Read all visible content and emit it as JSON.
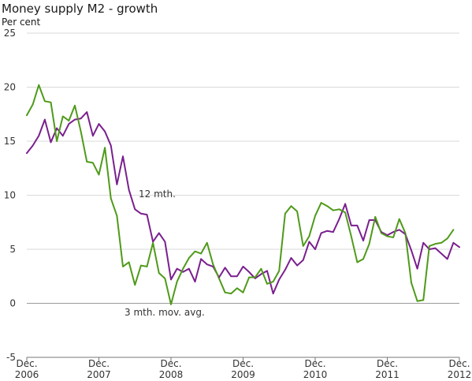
{
  "chart_data": {
    "type": "line",
    "title": "Money supply M2 - growth",
    "ylabel": "Per cent",
    "xlabel": "",
    "ylim": [
      -5,
      25
    ],
    "yticks": [
      "25",
      "20",
      "15",
      "10",
      "5",
      "0",
      "-5"
    ],
    "xticks": [
      {
        "label": "Dec.",
        "year": "2006",
        "x": 0
      },
      {
        "label": "Dec.",
        "year": "2007",
        "x": 12
      },
      {
        "label": "Dec.",
        "year": "2008",
        "x": 24
      },
      {
        "label": "Dec.",
        "year": "2009",
        "x": 36
      },
      {
        "label": "Dec.",
        "year": "2010",
        "x": 48
      },
      {
        "label": "Dec.",
        "year": "2011",
        "x": 60
      },
      {
        "label": "Dec.",
        "year": "2012",
        "x": 72
      }
    ],
    "x_unit": "months since Dec. 2006",
    "grid": "horizontal",
    "colors": {
      "twelve_month": "#7a1f8e",
      "three_month": "#4f9a1a",
      "grid": "#d9d9d9",
      "zero": "#9a9a9a"
    },
    "annotations": {
      "twelve_month": "12 mth.",
      "three_month": "3 mth. mov. avg."
    },
    "series": [
      {
        "key": "twelve_month",
        "x_start": 0,
        "values": [
          13.9,
          14.6,
          15.5,
          17.0,
          14.9,
          16.2,
          15.5,
          16.6,
          17.0,
          17.1,
          17.7,
          15.5,
          16.6,
          15.9,
          14.6,
          11.0,
          13.6,
          10.5,
          8.7,
          8.3,
          8.2,
          5.7,
          6.5,
          5.7,
          2.2,
          3.2,
          2.9,
          3.2,
          2.0,
          4.1,
          3.6,
          3.4,
          2.4,
          3.3,
          2.5,
          2.5,
          3.4,
          2.9,
          2.3,
          2.7,
          3.0,
          0.9,
          2.2,
          3.1,
          4.2,
          3.5,
          4.0,
          5.7,
          5.0,
          6.5,
          6.7,
          6.6,
          7.8,
          9.2,
          7.2,
          7.2,
          5.8,
          7.7,
          7.7,
          6.6,
          6.3,
          6.6,
          6.8,
          6.4,
          4.9,
          3.2,
          5.6,
          5.0,
          5.1,
          4.6,
          4.1,
          5.6,
          5.2
        ]
      },
      {
        "key": "three_month",
        "x_start": 0,
        "values": [
          17.4,
          18.4,
          20.2,
          18.7,
          18.6,
          15.0,
          17.3,
          16.9,
          18.3,
          15.9,
          13.1,
          13.0,
          11.9,
          14.4,
          9.7,
          8.1,
          3.4,
          3.8,
          1.7,
          3.5,
          3.4,
          5.6,
          2.8,
          2.3,
          -0.1,
          2.0,
          3.2,
          4.2,
          4.8,
          4.6,
          5.6,
          3.6,
          2.3,
          1.0,
          0.9,
          1.4,
          1.0,
          2.4,
          2.4,
          3.2,
          1.8,
          2.0,
          3.0,
          8.3,
          9.0,
          8.5,
          5.3,
          6.2,
          8.1,
          9.3,
          9.0,
          8.6,
          8.7,
          8.4,
          6.2,
          3.8,
          4.1,
          5.5,
          8.0,
          6.5,
          6.2,
          6.1,
          7.8,
          6.5,
          1.9,
          0.2,
          0.3,
          5.3,
          5.5,
          5.6,
          6.0,
          6.8
        ]
      }
    ]
  }
}
